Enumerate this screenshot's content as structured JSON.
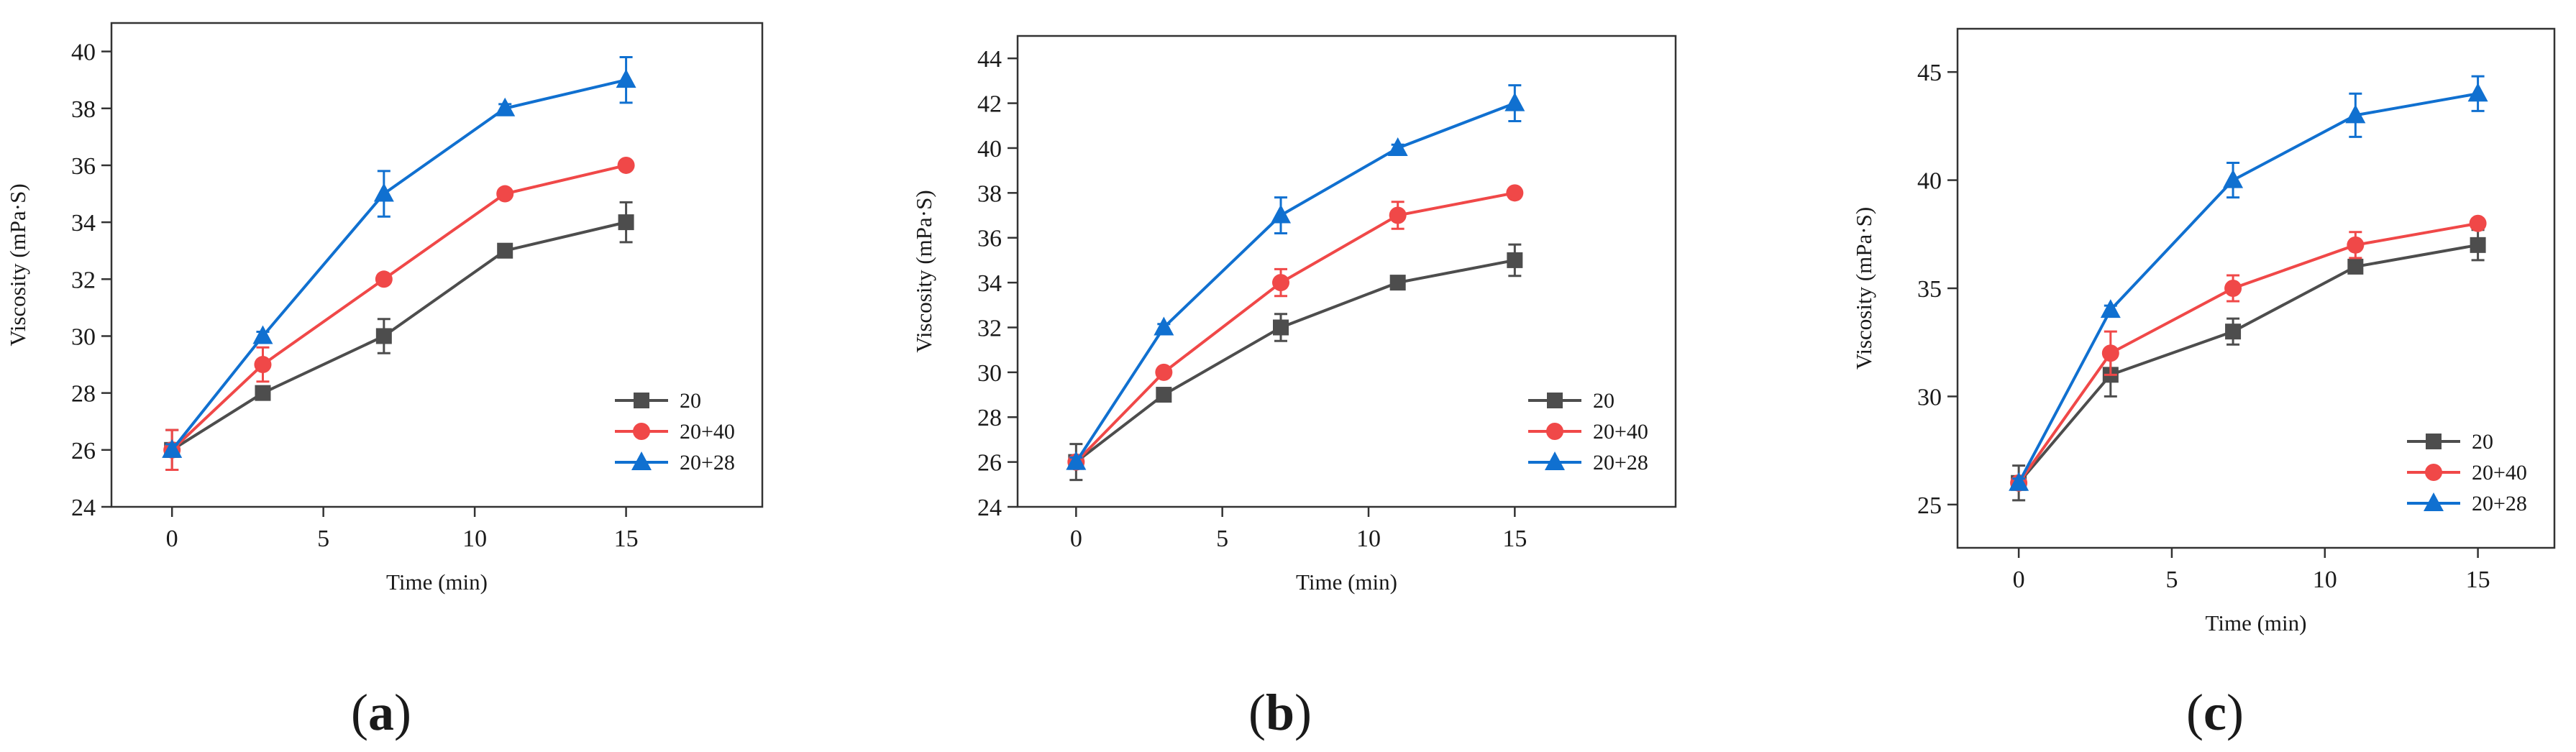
{
  "chart_data": [
    {
      "type": "line",
      "panel_label": "a",
      "xlabel": "Time (min)",
      "ylabel": "Viscosity (mPa·S)",
      "x": [
        0,
        3,
        7,
        11,
        15
      ],
      "xlim": [
        -2,
        19.5
      ],
      "ylim": [
        24,
        41
      ],
      "xticks": [
        0,
        5,
        10,
        15
      ],
      "yticks": [
        24,
        26,
        28,
        30,
        32,
        34,
        36,
        38,
        40
      ],
      "legend_position": "bottom-right",
      "series": [
        {
          "name": "20",
          "marker": "square",
          "color": "#4d4d4d",
          "values": [
            26,
            28,
            30,
            33,
            34
          ],
          "errors": [
            0.7,
            0.15,
            0.6,
            0.15,
            0.7
          ]
        },
        {
          "name": "20+40",
          "marker": "circle",
          "color": "#f04848",
          "values": [
            26,
            29,
            32,
            35,
            36
          ],
          "errors": [
            0.7,
            0.6,
            0.15,
            0.15,
            0.15
          ]
        },
        {
          "name": "20+28",
          "marker": "triangle",
          "color": "#1070d0",
          "values": [
            26,
            30,
            35,
            38,
            39
          ],
          "errors": [
            0.2,
            0.15,
            0.8,
            0.15,
            0.8
          ]
        }
      ]
    },
    {
      "type": "line",
      "panel_label": "b",
      "xlabel": "Time (min)",
      "ylabel": "Viscosity (mPa·S)",
      "x": [
        0,
        3,
        7,
        11,
        15
      ],
      "xlim": [
        -2,
        20.5
      ],
      "ylim": [
        24,
        45
      ],
      "xticks": [
        0,
        5,
        10,
        15
      ],
      "yticks": [
        24,
        26,
        28,
        30,
        32,
        34,
        36,
        38,
        40,
        42,
        44
      ],
      "legend_position": "bottom-right",
      "series": [
        {
          "name": "20",
          "marker": "square",
          "color": "#4d4d4d",
          "values": [
            26,
            29,
            32,
            34,
            35
          ],
          "errors": [
            0.8,
            0.15,
            0.6,
            0.15,
            0.7
          ]
        },
        {
          "name": "20+40",
          "marker": "circle",
          "color": "#f04848",
          "values": [
            26,
            30,
            34,
            37,
            38
          ],
          "errors": [
            0.2,
            0.15,
            0.6,
            0.6,
            0.15
          ]
        },
        {
          "name": "20+28",
          "marker": "triangle",
          "color": "#1070d0",
          "values": [
            26,
            32,
            37,
            40,
            42
          ],
          "errors": [
            0.2,
            0.15,
            0.8,
            0.15,
            0.8
          ]
        }
      ]
    },
    {
      "type": "line",
      "panel_label": "c",
      "xlabel": "Time (min)",
      "ylabel": "Viscosity (mPa·S)",
      "x": [
        0,
        3,
        7,
        11,
        15
      ],
      "xlim": [
        -2,
        17.5
      ],
      "ylim": [
        23,
        47
      ],
      "xticks": [
        0,
        5,
        10,
        15
      ],
      "yticks": [
        25,
        30,
        35,
        40,
        45
      ],
      "legend_position": "bottom-right",
      "series": [
        {
          "name": "20",
          "marker": "square",
          "color": "#4d4d4d",
          "values": [
            26,
            31,
            33,
            36,
            37
          ],
          "errors": [
            0.8,
            1.0,
            0.6,
            0.2,
            0.7
          ]
        },
        {
          "name": "20+40",
          "marker": "circle",
          "color": "#f04848",
          "values": [
            26,
            32,
            35,
            37,
            38
          ],
          "errors": [
            0.2,
            1.0,
            0.6,
            0.6,
            0.2
          ]
        },
        {
          "name": "20+28",
          "marker": "triangle",
          "color": "#1070d0",
          "values": [
            26,
            34,
            40,
            43,
            44
          ],
          "errors": [
            0.2,
            0.2,
            0.8,
            1.0,
            0.8
          ]
        }
      ]
    }
  ]
}
